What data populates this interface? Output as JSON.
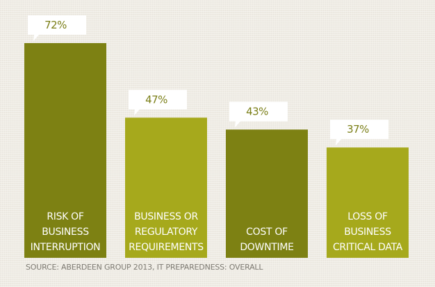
{
  "chart_data": {
    "type": "bar",
    "categories": [
      [
        "RISK OF",
        "BUSINESS",
        "INTERRUPTION"
      ],
      [
        "BUSINESS OR",
        "REGULATORY",
        "REQUIREMENTS"
      ],
      [
        "COST OF",
        "DOWNTIME"
      ],
      [
        "LOSS OF",
        "BUSINESS",
        "CRITICAL DATA"
      ]
    ],
    "values": [
      72,
      47,
      43,
      37
    ],
    "value_labels": [
      "72%",
      "47%",
      "43%",
      "37%"
    ],
    "title": "",
    "xlabel": "",
    "ylabel": "",
    "ylim": [
      0,
      72
    ],
    "grid": false,
    "legend": "none",
    "colors": [
      "#7d8113",
      "#a6a91c",
      "#7d8113",
      "#a6a91c"
    ],
    "callout_color": "#ffffff"
  },
  "source": "SOURCE: ABERDEEN GROUP 2013, IT PREPAREDNESS: OVERALL"
}
